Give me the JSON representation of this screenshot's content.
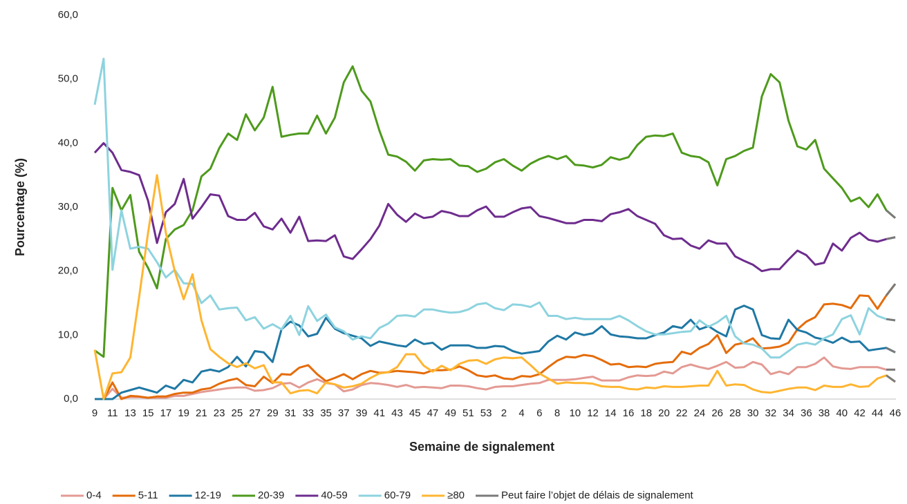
{
  "chart_data": {
    "type": "line",
    "y_label": "Pourcentage (%)",
    "x_label": "Semaine de signalement",
    "categories": [
      "9",
      null,
      "11",
      null,
      "13",
      null,
      "15",
      null,
      "17",
      null,
      "19",
      null,
      "21",
      null,
      "23",
      null,
      "25",
      null,
      "27",
      null,
      "29",
      null,
      "31",
      null,
      "33",
      null,
      "35",
      null,
      "37",
      null,
      "39",
      null,
      "41",
      null,
      "43",
      null,
      "45",
      null,
      "47",
      null,
      "49",
      null,
      "51",
      null,
      "53",
      null,
      "2",
      null,
      "4",
      null,
      "6",
      null,
      "8",
      null,
      "10",
      null,
      "12",
      null,
      "14",
      null,
      "16",
      null,
      "18",
      null,
      "20",
      null,
      "22",
      null,
      "24",
      null,
      "26",
      null,
      "28",
      null,
      "30",
      null,
      "32",
      null,
      "34",
      null,
      "36",
      null,
      "38",
      null,
      "40",
      null,
      "42",
      null,
      "44",
      null,
      "46"
    ],
    "ylim": [
      0,
      60
    ],
    "yticks": [
      {
        "value": 0,
        "label": "0,0"
      },
      {
        "value": 10,
        "label": "10,0"
      },
      {
        "value": 20,
        "label": "20,0"
      },
      {
        "value": 30,
        "label": "30,0"
      },
      {
        "value": 40,
        "label": "40,0"
      },
      {
        "value": 50,
        "label": "50,0"
      },
      {
        "value": 60,
        "label": "60,0"
      }
    ],
    "grid": false,
    "series": [
      {
        "name": "0-4",
        "color": "#e39a93",
        "values": [
          0,
          0,
          1.6,
          0.2,
          0.3,
          0.3,
          0.2,
          0.2,
          0.2,
          0.5,
          0.5,
          0.8,
          1.1,
          1.3,
          1.5,
          1.7,
          1.8,
          1.8,
          1.3,
          1.4,
          1.7,
          2.4,
          2.5,
          1.8,
          2.6,
          3.1,
          2.5,
          2.3,
          1.2,
          1.5,
          2.2,
          2.5,
          2.4,
          2.2,
          1.9,
          2.2,
          1.8,
          1.9,
          1.8,
          1.7,
          2.1,
          2.1,
          2,
          1.7,
          1.5,
          1.9,
          2,
          2,
          2.2,
          2.4,
          2.5,
          3,
          3,
          3,
          3.1,
          3.3,
          3.5,
          2.9,
          2.9,
          2.9,
          3.4,
          3.7,
          3.6,
          3.7,
          4.3,
          4,
          5,
          5.4,
          5,
          4.7,
          5.2,
          5.8,
          4.9,
          5,
          5.8,
          5.4,
          3.9,
          4.3,
          3.9,
          5,
          5,
          5.5,
          6.5,
          5.1,
          4.8,
          4.7,
          5,
          5,
          5,
          4.6,
          4.6
        ]
      },
      {
        "name": "5-11",
        "color": "#e46c0a",
        "values": [
          0,
          0,
          2.6,
          0,
          0.5,
          0.4,
          0.2,
          0.4,
          0.4,
          0.8,
          1,
          1,
          1.5,
          1.7,
          2.4,
          2.9,
          3.2,
          2.2,
          2,
          3.5,
          2.5,
          3.9,
          3.8,
          4.9,
          5.3,
          3.9,
          2.8,
          3.3,
          3.9,
          3.1,
          3.9,
          4.4,
          4.1,
          4.2,
          4.4,
          4.3,
          4.2,
          4,
          4.5,
          4.5,
          4.6,
          5.1,
          4.5,
          3.7,
          3.5,
          3.7,
          3.2,
          3.1,
          3.6,
          3.5,
          3.9,
          5,
          6,
          6.6,
          6.5,
          6.9,
          6.7,
          6.1,
          5.4,
          5.5,
          5,
          5.1,
          5,
          5.5,
          5.7,
          5.8,
          7.4,
          7,
          8,
          8.6,
          10,
          7.2,
          8.5,
          8.8,
          9.5,
          7.9,
          8,
          8.2,
          8.8,
          10.9,
          12.1,
          12.8,
          14.8,
          14.9,
          14.7,
          14.2,
          16.2,
          16.1,
          14.1,
          16.2,
          18
        ]
      },
      {
        "name": "12-19",
        "color": "#1f78a4",
        "values": [
          0,
          0,
          0,
          1,
          1.4,
          1.8,
          1.4,
          1,
          2.1,
          1.6,
          3,
          2.6,
          4.3,
          4.6,
          4.3,
          5,
          6.6,
          5.1,
          7.5,
          7.3,
          5.8,
          10.9,
          12.1,
          11.5,
          9.8,
          10.2,
          12.7,
          11,
          10.3,
          9.9,
          9.5,
          8.3,
          9,
          8.7,
          8.4,
          8.2,
          9.3,
          8.6,
          8.8,
          7.7,
          8.4,
          8.4,
          8.4,
          8,
          8,
          8.3,
          8.2,
          7.5,
          7.1,
          7.3,
          7.5,
          9,
          9.9,
          9.3,
          10.4,
          10,
          10.3,
          11.4,
          10.1,
          9.8,
          9.7,
          9.5,
          9.5,
          10,
          10.4,
          11.4,
          11.1,
          12.4,
          10.9,
          11.4,
          10.5,
          9.8,
          14,
          14.6,
          14,
          10,
          9.5,
          9.4,
          12.4,
          10.8,
          10.4,
          9.6,
          9.3,
          8.8,
          9.6,
          8.9,
          9,
          7.6,
          7.8,
          8,
          7.3
        ]
      },
      {
        "name": "20-39",
        "color": "#4e9a1c",
        "values": [
          7.6,
          6.6,
          33,
          29.5,
          31.9,
          23,
          20.5,
          17.3,
          25,
          26.5,
          27.2,
          29.5,
          34.8,
          36,
          39.2,
          41.5,
          40.5,
          44.5,
          42,
          44,
          48.8,
          41,
          41.3,
          41.5,
          41.5,
          44.3,
          41.5,
          44,
          49.5,
          52,
          48.2,
          46.5,
          42,
          38.2,
          37.9,
          37.1,
          35.7,
          37.3,
          37.5,
          37.4,
          37.5,
          36.5,
          36.4,
          35.5,
          36,
          37,
          37.5,
          36.5,
          35.7,
          36.8,
          37.5,
          38,
          37.5,
          38,
          36.6,
          36.5,
          36.2,
          36.6,
          37.8,
          37.4,
          37.8,
          39.7,
          41,
          41.2,
          41.1,
          41.5,
          38.5,
          38,
          37.8,
          37,
          33.4,
          37.5,
          38,
          38.8,
          39.3,
          47.3,
          50.8,
          49.5,
          43.5,
          39.5,
          39,
          40.5,
          36,
          34.5,
          33,
          30.9,
          31.5,
          30,
          32,
          29.5,
          28.3
        ]
      },
      {
        "name": "40-59",
        "color": "#6e2c8e",
        "values": [
          38.5,
          40,
          38.5,
          35.8,
          35.5,
          35,
          31,
          24.4,
          29.2,
          30.5,
          34.4,
          28.2,
          30,
          32,
          31.8,
          28.6,
          28,
          28,
          29.1,
          27,
          26.5,
          28.2,
          26,
          28.5,
          24.7,
          24.8,
          24.7,
          25.6,
          22.3,
          21.9,
          23.4,
          25,
          27.1,
          30.5,
          28.8,
          27.7,
          29,
          28.3,
          28.5,
          29.4,
          29.1,
          28.6,
          28.6,
          29.5,
          30.1,
          28.5,
          28.5,
          29.2,
          29.8,
          30,
          28.6,
          28.3,
          27.9,
          27.5,
          27.5,
          28,
          28,
          27.8,
          28.9,
          29.2,
          29.7,
          28.6,
          28,
          27.4,
          25.6,
          25,
          25.1,
          24,
          23.5,
          24.8,
          24.3,
          24.3,
          22.3,
          21.6,
          21,
          20,
          20.3,
          20.3,
          21.8,
          23.2,
          22.5,
          21,
          21.3,
          24.3,
          23.2,
          25.2,
          26,
          24.9,
          24.6,
          25,
          25.3
        ]
      },
      {
        "name": "60-79",
        "color": "#8dd3df",
        "values": [
          46,
          53.2,
          20.2,
          29.5,
          23.5,
          23.8,
          23.5,
          21.4,
          19,
          20.2,
          18.1,
          18,
          15,
          16.2,
          14,
          14.2,
          14.3,
          12.3,
          12.8,
          11,
          11.7,
          10.9,
          13,
          10,
          14.5,
          12.2,
          13.2,
          11.2,
          10.6,
          9.3,
          9.8,
          9.5,
          11.1,
          11.8,
          13,
          13.1,
          12.9,
          14,
          14,
          13.7,
          13.5,
          13.6,
          14,
          14.8,
          15,
          14.2,
          13.9,
          14.8,
          14.7,
          14.4,
          15.1,
          13,
          13,
          12.5,
          12.7,
          12.5,
          12.5,
          12.5,
          12.5,
          13,
          12.3,
          11.4,
          10.6,
          10.1,
          10.1,
          10.3,
          10.5,
          10.6,
          12.3,
          11.3,
          12,
          13,
          9.8,
          8.7,
          8.5,
          7.9,
          6.5,
          6.5,
          7.5,
          8.5,
          8.8,
          8.5,
          9.5,
          10.1,
          12.5,
          13.1,
          10.1,
          14.2,
          13,
          12.5,
          12.3
        ]
      },
      {
        "name": "≥80",
        "color": "#ffb531",
        "values": [
          7.7,
          0,
          4,
          4.2,
          6.5,
          16,
          26,
          35,
          26,
          20,
          15.6,
          19.5,
          12.3,
          7.8,
          6.6,
          5.6,
          5,
          5.6,
          4.8,
          5.3,
          2.6,
          2.6,
          0.9,
          1.3,
          1.4,
          0.9,
          2.6,
          2.3,
          1.8,
          2,
          2.4,
          3.3,
          4,
          4.2,
          5,
          7,
          7,
          5.2,
          4.3,
          5.2,
          4.5,
          5.5,
          6,
          6.1,
          5.5,
          6.2,
          6.5,
          6.4,
          6.5,
          5.3,
          4,
          3.2,
          2.4,
          2.6,
          2.5,
          2.5,
          2.4,
          2,
          1.9,
          1.9,
          1.6,
          1.5,
          1.8,
          1.7,
          2,
          1.9,
          1.9,
          2,
          2.1,
          2.1,
          4.4,
          2.1,
          2.3,
          2.2,
          1.5,
          1.1,
          1,
          1.3,
          1.6,
          1.8,
          1.8,
          1.4,
          2.1,
          1.9,
          1.9,
          2.3,
          1.9,
          2,
          3.2,
          3.7,
          2.7
        ]
      }
    ],
    "delay": {
      "name": "Peut faire l’objet de délais de signalement",
      "color": "#7a7a7a",
      "intervals": 1
    }
  }
}
